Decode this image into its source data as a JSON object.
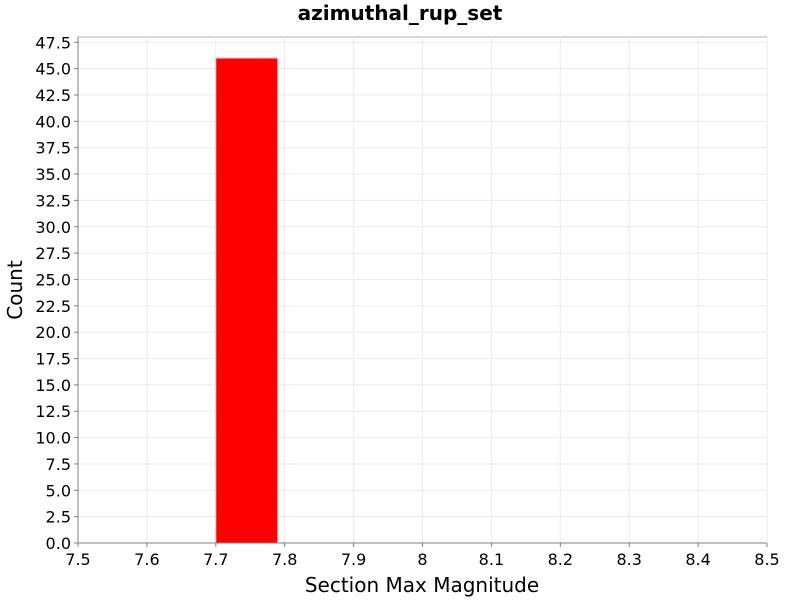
{
  "chart_data": {
    "type": "bar",
    "title": "azimuthal_rup_set",
    "xlabel": "Section Max Magnitude",
    "ylabel": "Count",
    "xlim": [
      7.5,
      8.5
    ],
    "ylim": [
      0,
      48
    ],
    "x_ticks": [
      "7.5",
      "7.6",
      "7.7",
      "7.8",
      "7.9",
      "8",
      "8.1",
      "8.2",
      "8.3",
      "8.4",
      "8.5"
    ],
    "y_ticks": [
      "0.0",
      "2.5",
      "5.0",
      "7.5",
      "10.0",
      "12.5",
      "15.0",
      "17.5",
      "20.0",
      "22.5",
      "25.0",
      "27.5",
      "30.0",
      "32.5",
      "35.0",
      "37.5",
      "40.0",
      "42.5",
      "45.0",
      "47.5"
    ],
    "grid": true,
    "bar_color": "#ff0000",
    "bins": [
      {
        "x_start": 7.7,
        "x_end": 7.79,
        "value": 46
      }
    ]
  }
}
